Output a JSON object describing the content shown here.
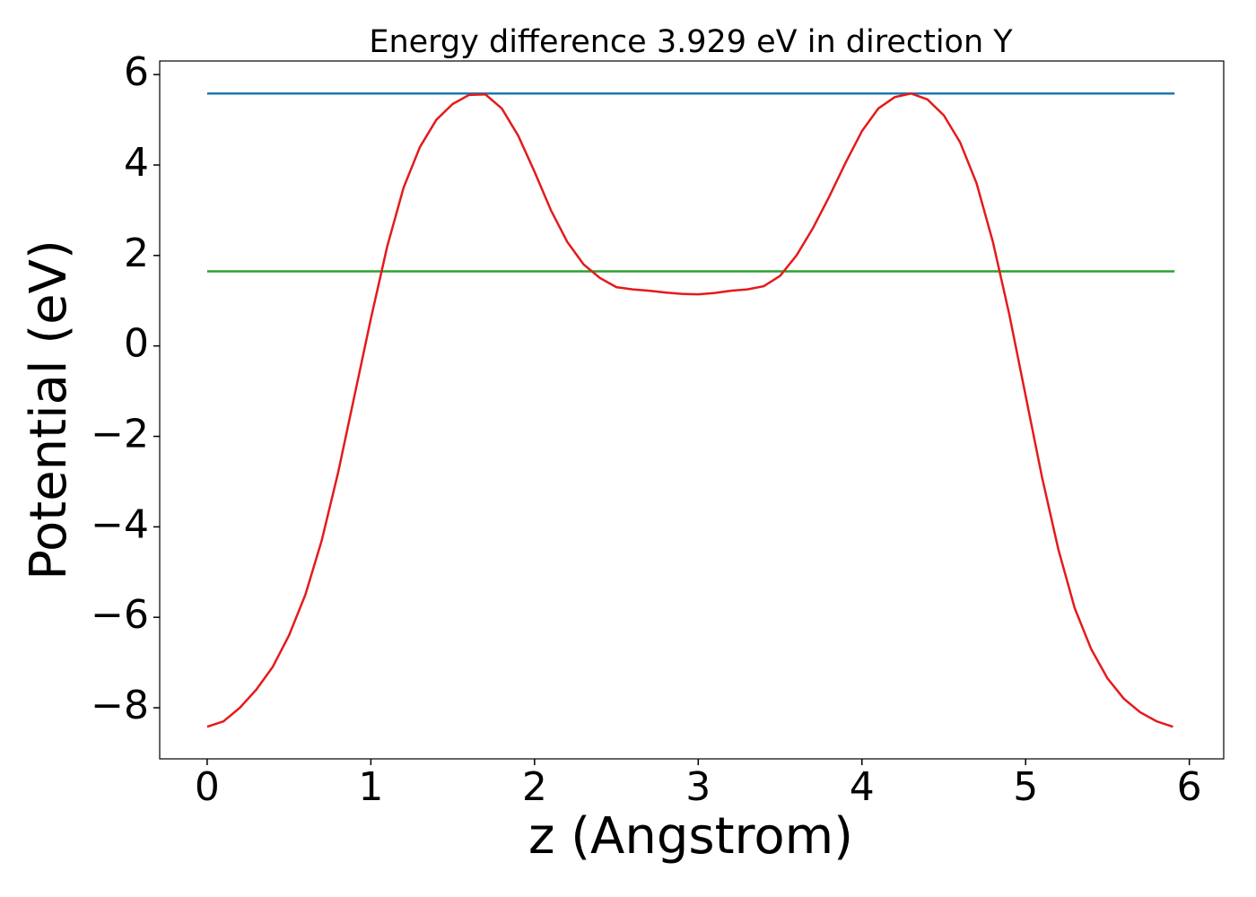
{
  "chart_data": {
    "type": "line",
    "title": "Energy difference 3.929 eV in direction Y",
    "x_label": "z (Angstrom)",
    "y_label": "Potential (eV)",
    "xlim": [
      -0.29,
      6.21
    ],
    "ylim": [
      -9.13,
      6.3
    ],
    "xticks": [
      0,
      1,
      2,
      3,
      4,
      5,
      6
    ],
    "yticks": [
      {
        "value": -8,
        "label": "−8"
      },
      {
        "value": -6,
        "label": "−6"
      },
      {
        "value": -4,
        "label": "−4"
      },
      {
        "value": -2,
        "label": "−2"
      },
      0,
      2,
      4,
      6
    ],
    "series": [
      {
        "color": "#1f77b4",
        "x": [
          0,
          5.91
        ],
        "values": [
          5.58,
          5.58
        ]
      },
      {
        "color": "#2ca02c",
        "x": [
          0,
          5.91
        ],
        "values": [
          1.65,
          1.65
        ]
      },
      {
        "color": "#e41a1c",
        "x": [
          0,
          0.1,
          0.2,
          0.3,
          0.4,
          0.5,
          0.6,
          0.7,
          0.8,
          0.9,
          1.0,
          1.1,
          1.2,
          1.3,
          1.4,
          1.5,
          1.6,
          1.7,
          1.8,
          1.9,
          2.0,
          2.1,
          2.2,
          2.3,
          2.4,
          2.5,
          2.6,
          2.7,
          2.8,
          2.9,
          3.0,
          3.1,
          3.2,
          3.3,
          3.4,
          3.5,
          3.6,
          3.7,
          3.8,
          3.9,
          4.0,
          4.1,
          4.2,
          4.3,
          4.4,
          4.5,
          4.6,
          4.7,
          4.8,
          4.9,
          5.0,
          5.1,
          5.2,
          5.3,
          5.4,
          5.5,
          5.6,
          5.7,
          5.8,
          5.9
        ],
        "values": [
          -8.42,
          -8.3,
          -8.0,
          -7.6,
          -7.1,
          -6.4,
          -5.5,
          -4.3,
          -2.8,
          -1.1,
          0.6,
          2.2,
          3.5,
          4.4,
          5.0,
          5.35,
          5.55,
          5.56,
          5.25,
          4.65,
          3.85,
          3.0,
          2.3,
          1.8,
          1.5,
          1.3,
          1.25,
          1.22,
          1.18,
          1.15,
          1.14,
          1.17,
          1.22,
          1.25,
          1.32,
          1.55,
          2.0,
          2.6,
          3.3,
          4.05,
          4.75,
          5.25,
          5.5,
          5.58,
          5.45,
          5.1,
          4.5,
          3.6,
          2.3,
          0.7,
          -1.1,
          -2.9,
          -4.5,
          -5.8,
          -6.7,
          -7.35,
          -7.8,
          -8.1,
          -8.3,
          -8.42
        ]
      }
    ]
  }
}
